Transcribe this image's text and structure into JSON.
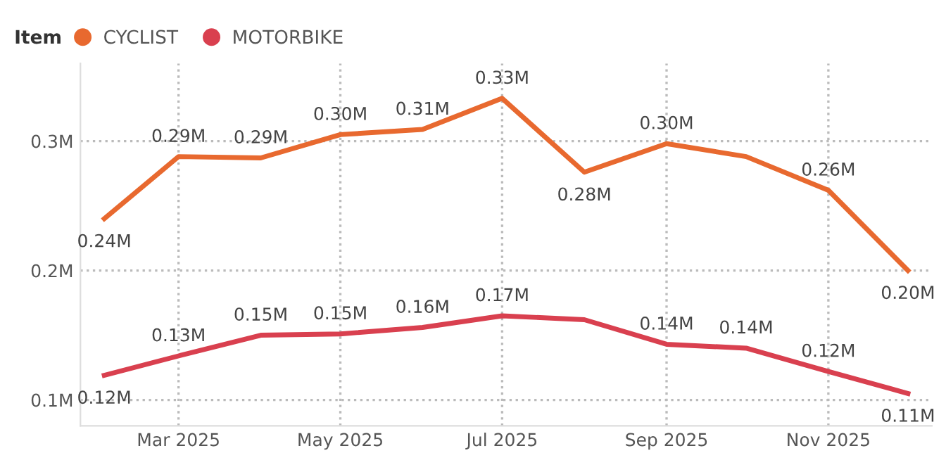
{
  "chart_data": {
    "type": "line",
    "legend_title": "Item",
    "legend": "top left",
    "grid": true,
    "marker": "none",
    "line_style": "solid",
    "x": [
      "2025-02",
      "2025-03",
      "2025-04",
      "2025-05",
      "2025-06",
      "2025-07",
      "2025-08",
      "2025-09",
      "2025-10",
      "2025-11",
      "2025-12"
    ],
    "xlim": [
      "2025-01-23",
      "2025-12-10"
    ],
    "xticks": [
      {
        "value": "2025-03",
        "label": "Mar 2025"
      },
      {
        "value": "2025-05",
        "label": "May 2025"
      },
      {
        "value": "2025-07",
        "label": "Jul 2025"
      },
      {
        "value": "2025-09",
        "label": "Sep 2025"
      },
      {
        "value": "2025-11",
        "label": "Nov 2025"
      }
    ],
    "ylim": [
      0.08,
      0.36
    ],
    "yticks": [
      {
        "value": 0.1,
        "label": "0.1M"
      },
      {
        "value": 0.2,
        "label": "0.2M"
      },
      {
        "value": 0.3,
        "label": "0.3M"
      }
    ],
    "series": [
      {
        "name": "CYCLIST",
        "color": "#e8692f",
        "values": [
          0.24,
          0.288,
          0.287,
          0.305,
          0.309,
          0.333,
          0.276,
          0.298,
          0.288,
          0.262,
          0.2
        ],
        "value_labels": [
          "0.24M",
          "0.29M",
          "0.29M",
          "0.30M",
          "0.31M",
          "0.33M",
          "0.28M",
          "0.30M",
          null,
          "0.26M",
          "0.20M"
        ]
      },
      {
        "name": "MOTORBIKE",
        "color": "#d9404f",
        "values": [
          0.119,
          0.134,
          0.15,
          0.151,
          0.156,
          0.165,
          0.162,
          0.143,
          0.14,
          0.122,
          0.105
        ],
        "value_labels": [
          "0.12M",
          "0.13M",
          "0.15M",
          "0.15M",
          "0.16M",
          "0.17M",
          null,
          "0.14M",
          "0.14M",
          "0.12M",
          "0.11M"
        ]
      }
    ]
  }
}
